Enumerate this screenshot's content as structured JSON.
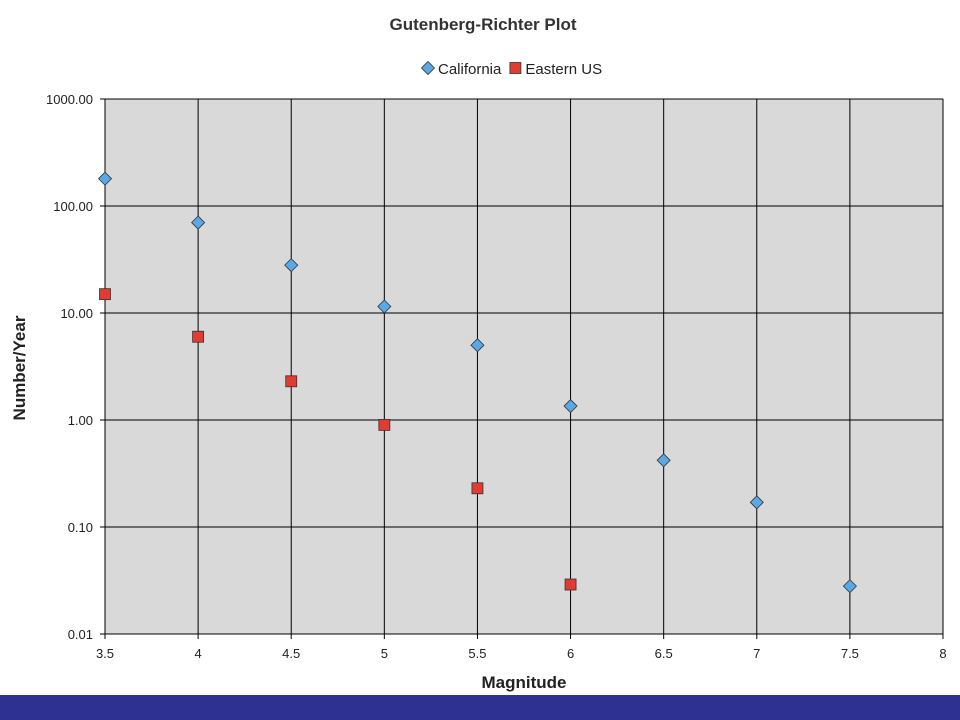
{
  "chart_data": {
    "type": "scatter",
    "title": "Gutenberg-Richter Plot",
    "xlabel": "Magnitude",
    "ylabel": "Number/Year",
    "x_scale": "linear",
    "y_scale": "log",
    "xlim": [
      3.5,
      8
    ],
    "ylim": [
      0.01,
      1000
    ],
    "x_ticks": [
      "3.5",
      "4",
      "4.5",
      "5",
      "5.5",
      "6",
      "6.5",
      "7",
      "7.5",
      "8"
    ],
    "y_ticks": [
      "0.01",
      "0.10",
      "1.00",
      "10.00",
      "100.00",
      "1000.00"
    ],
    "grid": true,
    "legend_position": "top",
    "series": [
      {
        "name": "California",
        "marker": "diamond",
        "color": "#5ba8e6",
        "x": [
          3.5,
          4,
          4.5,
          5,
          5.5,
          6,
          6.5,
          7,
          7.5
        ],
        "y": [
          180,
          70,
          28,
          11.5,
          5.0,
          1.35,
          0.42,
          0.17,
          0.028
        ]
      },
      {
        "name": "Eastern US",
        "marker": "square",
        "color": "#e03c31",
        "x": [
          3.5,
          4,
          4.5,
          5,
          5.5,
          6
        ],
        "y": [
          15,
          6.0,
          2.3,
          0.9,
          0.23,
          0.029
        ]
      }
    ]
  },
  "colors": {
    "plot_background": "#d9d9d9",
    "grid": "#000000",
    "footer_bar": "#2e3192"
  }
}
